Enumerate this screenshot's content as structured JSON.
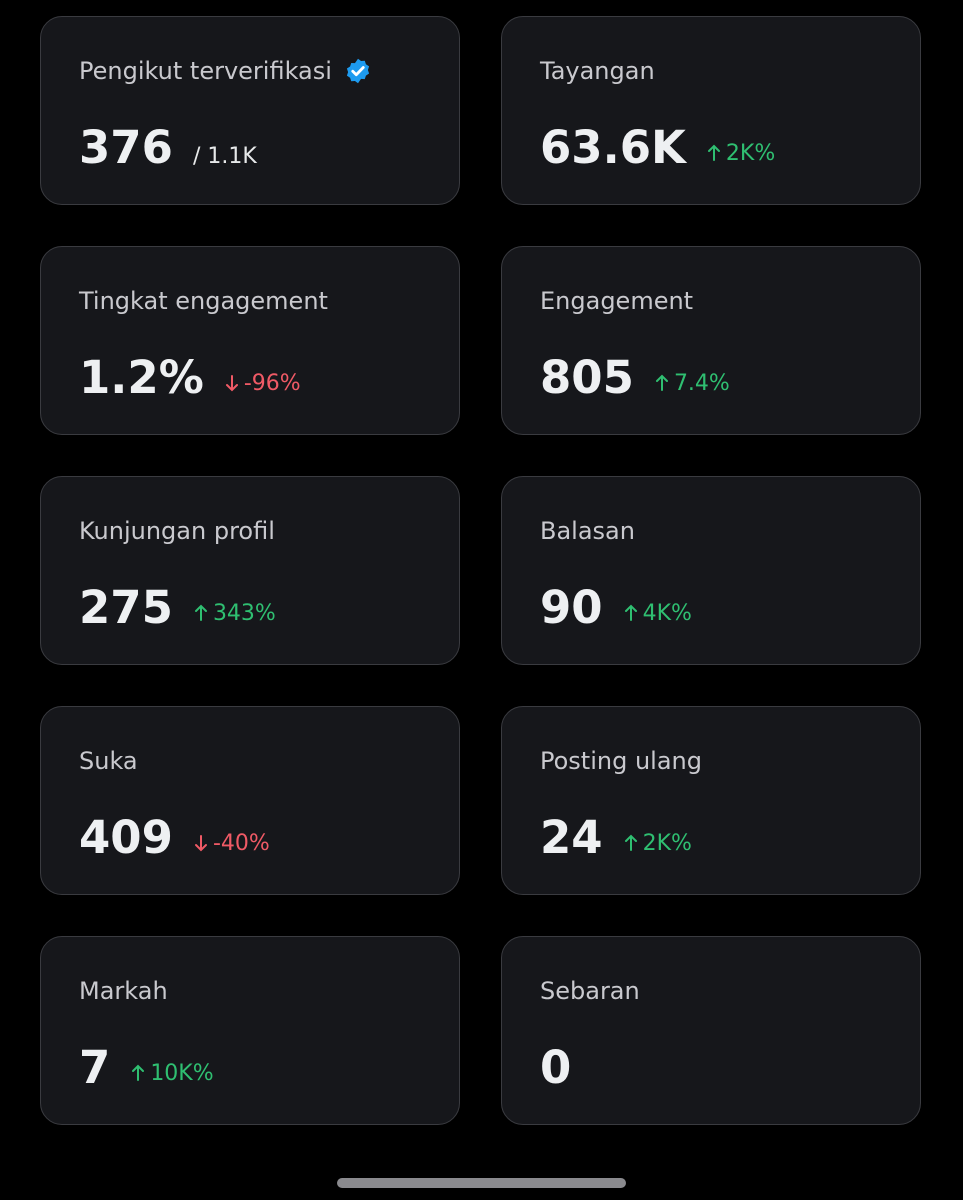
{
  "cards": [
    {
      "label": "Pengikut terverifikasi",
      "value": "376",
      "total": "/ 1.1K"
    },
    {
      "label": "Tayangan",
      "value": "63.6K",
      "change": "2K%"
    },
    {
      "label": "Tingkat engagement",
      "value": "1.2%",
      "change": "-96%"
    },
    {
      "label": "Engagement",
      "value": "805",
      "change": "7.4%"
    },
    {
      "label": "Kunjungan profil",
      "value": "275",
      "change": "343%"
    },
    {
      "label": "Balasan",
      "value": "90",
      "change": "4K%"
    },
    {
      "label": "Suka",
      "value": "409",
      "change": "-40%"
    },
    {
      "label": "Posting ulang",
      "value": "24",
      "change": "2K%"
    },
    {
      "label": "Markah",
      "value": "7",
      "change": "10K%"
    },
    {
      "label": "Sebaran",
      "value": "0"
    }
  ]
}
